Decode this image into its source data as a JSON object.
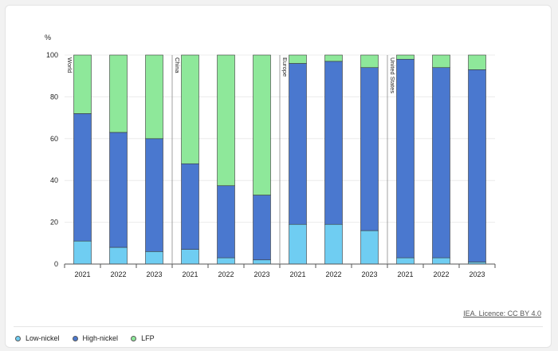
{
  "chart_data": {
    "type": "bar",
    "stacked": true,
    "ylabel": "%",
    "ylim": [
      0,
      100
    ],
    "yticks": [
      0,
      20,
      40,
      60,
      80,
      100
    ],
    "groups": [
      "World",
      "China",
      "Europe",
      "United States"
    ],
    "years": [
      "2021",
      "2022",
      "2023"
    ],
    "series": [
      {
        "name": "Low-nickel",
        "color": "#6fcdf2",
        "values": [
          11,
          8,
          6,
          7,
          3,
          2,
          19,
          19,
          16,
          3,
          3,
          1
        ]
      },
      {
        "name": "High-nickel",
        "color": "#4a78cf",
        "values": [
          61,
          55,
          54,
          41,
          34.5,
          31,
          77,
          78,
          78,
          95,
          91,
          92
        ]
      },
      {
        "name": "LFP",
        "color": "#8ee89a",
        "values": [
          28,
          37,
          40,
          52,
          62.5,
          67,
          4,
          3,
          6,
          2,
          6,
          7
        ]
      }
    ]
  },
  "licence": "IEA. Licence: CC BY 4.0"
}
